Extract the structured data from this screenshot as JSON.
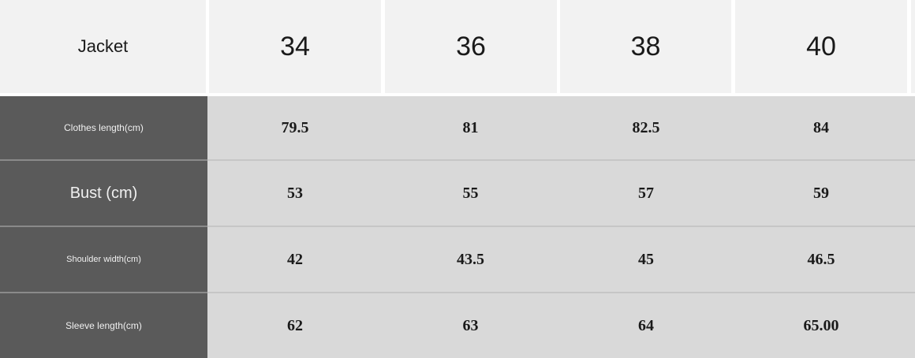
{
  "header": {
    "label": "Jacket",
    "sizes": [
      "34",
      "36",
      "38",
      "40"
    ]
  },
  "rows": [
    {
      "label": "Clothes length(cm)",
      "values": [
        "79.5",
        "81",
        "82.5",
        "84"
      ]
    },
    {
      "label": "Bust (cm)",
      "values": [
        "53",
        "55",
        "57",
        "59"
      ]
    },
    {
      "label": "Shoulder width(cm)",
      "values": [
        "42",
        "43.5",
        "45",
        "46.5"
      ]
    },
    {
      "label": "Sleeve length(cm)",
      "values": [
        "62",
        "63",
        "64",
        "65.00"
      ]
    }
  ],
  "colors": {
    "header_bg": "#f2f2f2",
    "label_bg": "#5a5a5a",
    "cell_bg": "#d9d9d9"
  }
}
